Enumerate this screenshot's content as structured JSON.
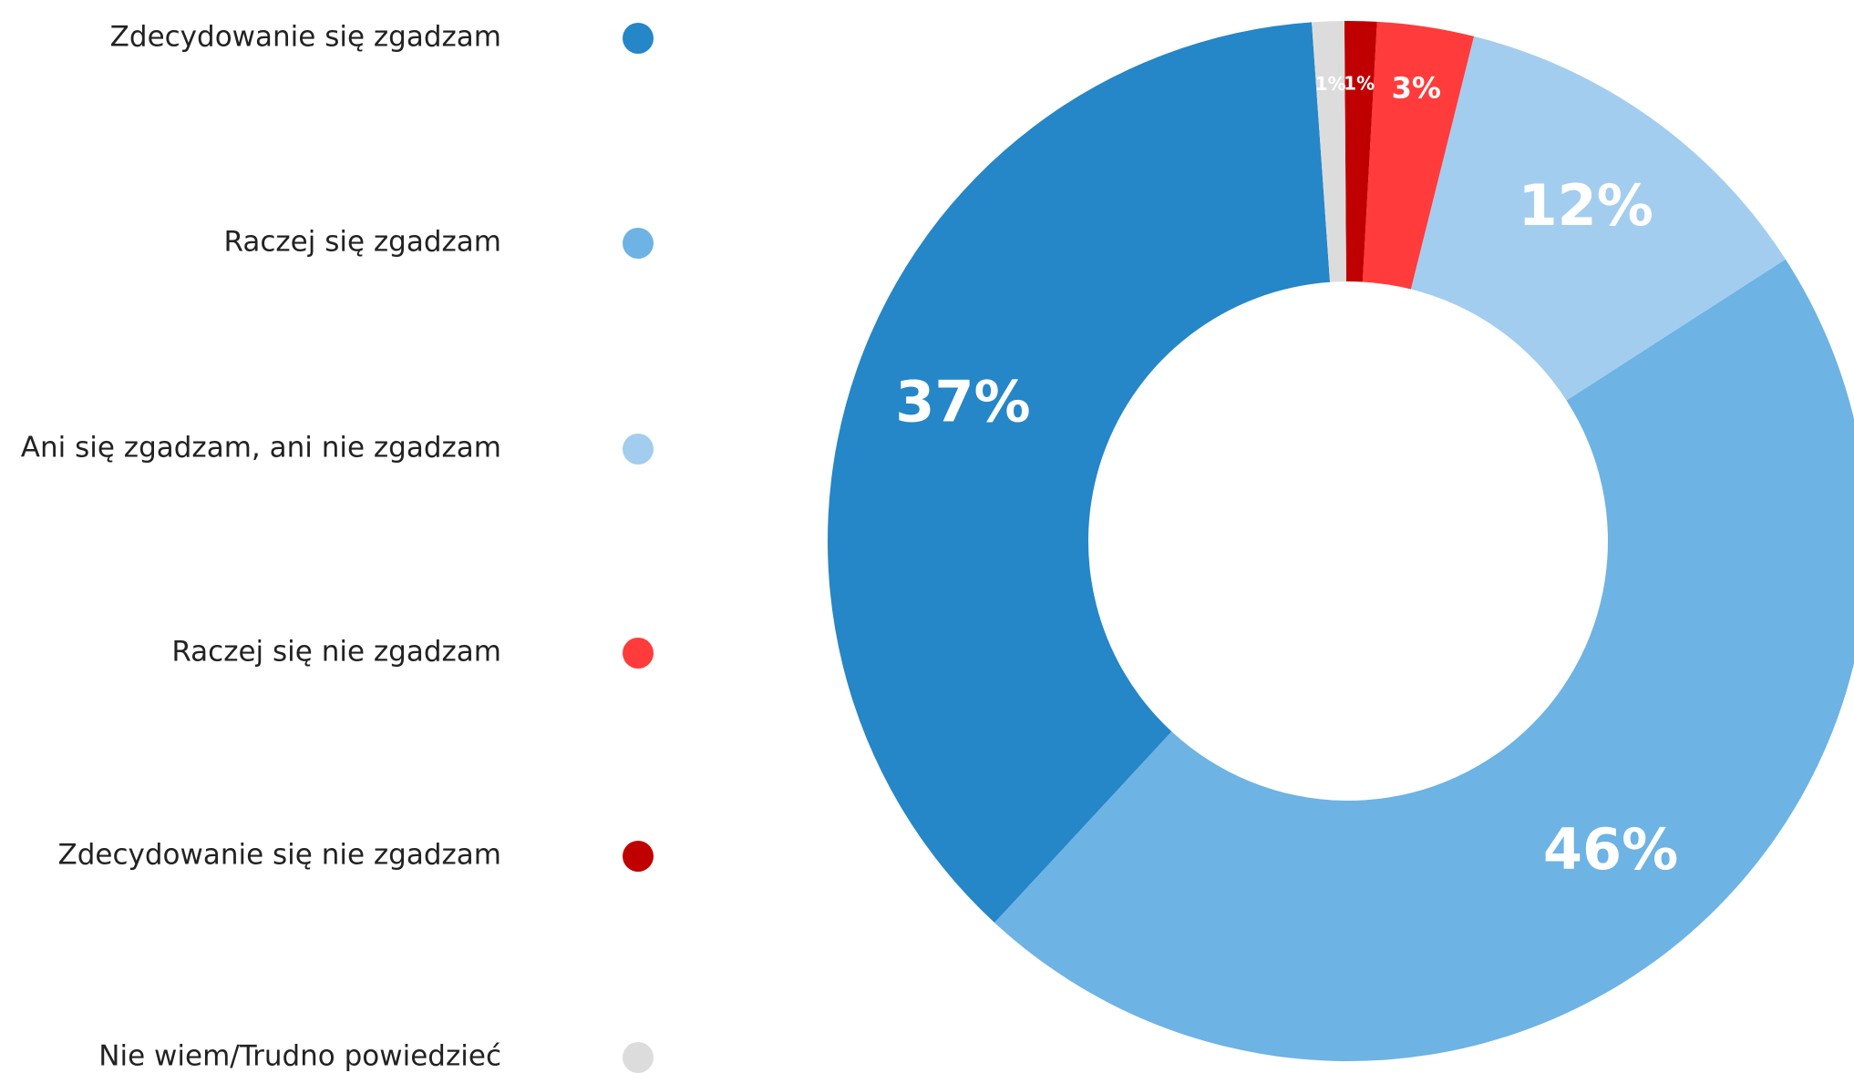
{
  "chart_data": {
    "type": "donut",
    "categories": [
      "Zdecydowanie się zgadzam",
      "Raczej się zgadzam",
      "Ani się zgadzam, ani nie zgadzam",
      "Raczej się nie zgadzam",
      "Zdecydowanie się nie zgadzam",
      "Nie wiem/Trudno powiedzieć"
    ],
    "values": [
      37,
      46,
      12,
      3,
      1,
      1
    ],
    "value_labels": [
      "37%",
      "46%",
      "12%",
      "3%",
      "1%",
      "1%"
    ],
    "colors": [
      "#2586c8",
      "#6db3e4",
      "#a3cdee",
      "#ff3b3b",
      "#c00000",
      "#dcdcdc"
    ],
    "legend": "left"
  }
}
